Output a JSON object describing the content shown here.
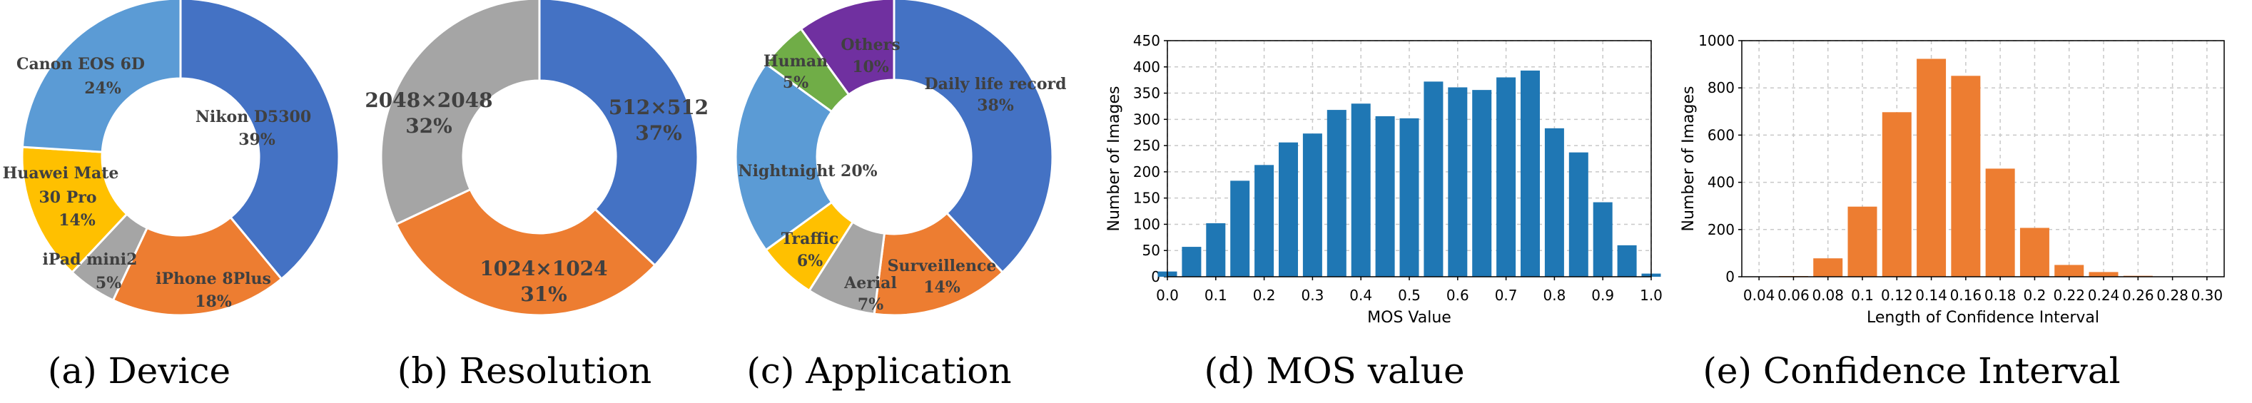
{
  "chart_data": [
    {
      "type": "pie",
      "caption": "(a) Device",
      "slices": [
        {
          "label": "Nikon D5300",
          "percent_label": "39%",
          "value": 39,
          "color": "#4472C4"
        },
        {
          "label": "iPhone 8Plus",
          "percent_label": "18%",
          "value": 18,
          "color": "#ED7D31"
        },
        {
          "label": "iPad mini2",
          "percent_label": "5%",
          "value": 5,
          "color": "#A5A5A5"
        },
        {
          "label": "Huawei Mate 30 Pro",
          "percent_label": "14%",
          "value": 14,
          "color": "#FFC000"
        },
        {
          "label": "Canon EOS 6D",
          "percent_label": "24%",
          "value": 24,
          "color": "#5B9BD5"
        }
      ]
    },
    {
      "type": "pie",
      "caption": "(b) Resolution",
      "slices": [
        {
          "label": "512×512",
          "percent_label": "37%",
          "value": 37,
          "color": "#4472C4"
        },
        {
          "label": "1024×1024",
          "percent_label": "31%",
          "value": 31,
          "color": "#ED7D31"
        },
        {
          "label": "2048×2048",
          "percent_label": "32%",
          "value": 32,
          "color": "#A5A5A5"
        }
      ]
    },
    {
      "type": "pie",
      "caption": "(c) Application",
      "slices": [
        {
          "label": "Daily life record",
          "percent_label": "38%",
          "value": 38,
          "color": "#4472C4"
        },
        {
          "label": "Surveillence",
          "percent_label": "14%",
          "value": 14,
          "color": "#ED7D31"
        },
        {
          "label": "Aerial",
          "percent_label": "7%",
          "value": 7,
          "color": "#A5A5A5"
        },
        {
          "label": "Traffic",
          "percent_label": "6%",
          "value": 6,
          "color": "#FFC000"
        },
        {
          "label": "Nightnight",
          "percent_label": "20%",
          "value": 20,
          "color": "#5B9BD5"
        },
        {
          "label": "Human",
          "percent_label": "5%",
          "value": 5,
          "color": "#70AD47"
        },
        {
          "label": "Others",
          "percent_label": "10%",
          "value": 10,
          "color": "#7030A0"
        }
      ]
    },
    {
      "type": "bar",
      "caption": "(d) MOS value",
      "xlabel": "MOS Value",
      "ylabel": "Number of Images",
      "ylim": [
        0,
        450
      ],
      "yticks": [
        0,
        50,
        100,
        150,
        200,
        250,
        300,
        350,
        400,
        450
      ],
      "xlim": [
        0,
        1
      ],
      "xticks": [
        "0.0",
        "0.1",
        "0.2",
        "0.3",
        "0.4",
        "0.5",
        "0.6",
        "0.7",
        "0.8",
        "0.9",
        "1.0"
      ],
      "bar_color": "#1F77B4",
      "grid": true,
      "bars": [
        {
          "x": 0.0,
          "value": 10
        },
        {
          "x": 0.05,
          "value": 57
        },
        {
          "x": 0.1,
          "value": 102
        },
        {
          "x": 0.15,
          "value": 183
        },
        {
          "x": 0.2,
          "value": 213
        },
        {
          "x": 0.25,
          "value": 256
        },
        {
          "x": 0.3,
          "value": 273
        },
        {
          "x": 0.35,
          "value": 318
        },
        {
          "x": 0.4,
          "value": 330
        },
        {
          "x": 0.45,
          "value": 306
        },
        {
          "x": 0.5,
          "value": 302
        },
        {
          "x": 0.55,
          "value": 372
        },
        {
          "x": 0.6,
          "value": 361
        },
        {
          "x": 0.65,
          "value": 356
        },
        {
          "x": 0.7,
          "value": 380
        },
        {
          "x": 0.75,
          "value": 393
        },
        {
          "x": 0.8,
          "value": 283
        },
        {
          "x": 0.85,
          "value": 237
        },
        {
          "x": 0.9,
          "value": 142
        },
        {
          "x": 0.95,
          "value": 60
        },
        {
          "x": 1.0,
          "value": 6
        }
      ]
    },
    {
      "type": "bar",
      "caption": "(e) Confidence Interval",
      "xlabel": "Length of Confidence Interval",
      "ylabel": "Number of Images",
      "ylim": [
        0,
        1000
      ],
      "yticks": [
        0,
        200,
        400,
        600,
        800,
        1000
      ],
      "xlim": [
        0.03,
        0.31
      ],
      "xticks": [
        "0.04",
        "0.06",
        "0.08",
        "0.1",
        "0.12",
        "0.14",
        "0.16",
        "0.18",
        "0.2",
        "0.22",
        "0.24",
        "0.26",
        "0.28",
        "0.30"
      ],
      "bar_color": "#ED7D31",
      "grid": true,
      "bars": [
        {
          "x": 0.06,
          "value": 3
        },
        {
          "x": 0.08,
          "value": 78
        },
        {
          "x": 0.1,
          "value": 297
        },
        {
          "x": 0.12,
          "value": 697
        },
        {
          "x": 0.14,
          "value": 923
        },
        {
          "x": 0.16,
          "value": 851
        },
        {
          "x": 0.18,
          "value": 458
        },
        {
          "x": 0.2,
          "value": 207
        },
        {
          "x": 0.22,
          "value": 50
        },
        {
          "x": 0.24,
          "value": 20
        },
        {
          "x": 0.26,
          "value": 4
        },
        {
          "x": 0.28,
          "value": 1
        }
      ]
    }
  ]
}
